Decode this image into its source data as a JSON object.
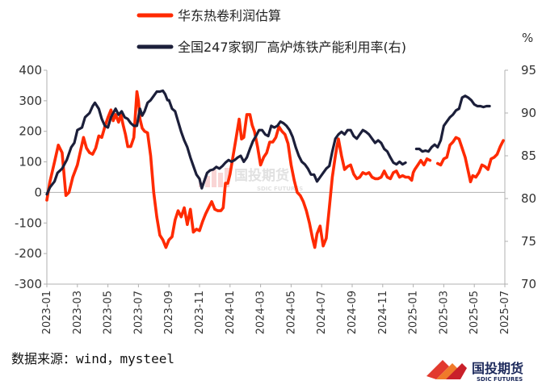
{
  "chart_data": {
    "type": "line",
    "title": "",
    "left_axis": {
      "ylim": [
        -300,
        400
      ],
      "ticks": [
        -300,
        -200,
        -100,
        0,
        100,
        200,
        300,
        400
      ]
    },
    "right_axis": {
      "unit": "%",
      "ylim": [
        70,
        95
      ],
      "ticks": [
        70,
        75,
        80,
        85,
        90,
        95
      ]
    },
    "x_ticks": [
      "2023-01",
      "2023-03",
      "2023-05",
      "2023-07",
      "2023-09",
      "2023-11",
      "2024-01",
      "2024-03",
      "2024-05",
      "2024-07",
      "2024-09",
      "2024-11",
      "2025-01",
      "2025-03",
      "2025-05",
      "2025-07"
    ],
    "x_range": [
      0,
      30
    ],
    "series": [
      {
        "name": "华东热卷利润估算",
        "axis": "left",
        "color": "#ff2a00",
        "points": [
          [
            0,
            -25
          ],
          [
            0.2,
            35
          ],
          [
            0.5,
            100
          ],
          [
            0.75,
            155
          ],
          [
            1.0,
            130
          ],
          [
            1.25,
            -10
          ],
          [
            1.45,
            0
          ],
          [
            1.7,
            50
          ],
          [
            2.0,
            90
          ],
          [
            2.2,
            135
          ],
          [
            2.4,
            180
          ],
          [
            2.6,
            145
          ],
          [
            2.8,
            130
          ],
          [
            3.0,
            125
          ],
          [
            3.2,
            145
          ],
          [
            3.4,
            185
          ],
          [
            3.6,
            180
          ],
          [
            3.8,
            215
          ],
          [
            4.0,
            245
          ],
          [
            4.2,
            270
          ],
          [
            4.35,
            235
          ],
          [
            4.5,
            255
          ],
          [
            4.7,
            230
          ],
          [
            4.85,
            255
          ],
          [
            5.0,
            220
          ],
          [
            5.15,
            190
          ],
          [
            5.3,
            150
          ],
          [
            5.5,
            150
          ],
          [
            5.7,
            180
          ],
          [
            5.9,
            330
          ],
          [
            6.0,
            300
          ],
          [
            6.1,
            240
          ],
          [
            6.25,
            210
          ],
          [
            6.4,
            200
          ],
          [
            6.6,
            195
          ],
          [
            6.8,
            120
          ],
          [
            7.0,
            0
          ],
          [
            7.2,
            -80
          ],
          [
            7.4,
            -140
          ],
          [
            7.6,
            -155
          ],
          [
            7.8,
            -180
          ],
          [
            8.0,
            -155
          ],
          [
            8.2,
            -145
          ],
          [
            8.4,
            -90
          ],
          [
            8.6,
            -60
          ],
          [
            8.8,
            -80
          ],
          [
            9.0,
            -50
          ],
          [
            9.2,
            -105
          ],
          [
            9.4,
            -55
          ],
          [
            9.6,
            -130
          ],
          [
            9.8,
            -120
          ],
          [
            10.0,
            -125
          ],
          [
            10.2,
            -95
          ],
          [
            10.4,
            -70
          ],
          [
            10.6,
            -50
          ],
          [
            10.8,
            -30
          ],
          [
            11.0,
            -55
          ],
          [
            11.2,
            -60
          ],
          [
            11.4,
            -60
          ],
          [
            11.55,
            -50
          ],
          [
            11.7,
            30
          ],
          [
            11.85,
            30
          ],
          [
            12.0,
            60
          ],
          [
            12.2,
            120
          ],
          [
            12.4,
            180
          ],
          [
            12.6,
            240
          ],
          [
            12.75,
            175
          ],
          [
            12.9,
            180
          ],
          [
            13.1,
            255
          ],
          [
            13.3,
            255
          ],
          [
            13.45,
            220
          ],
          [
            13.6,
            200
          ],
          [
            13.8,
            150
          ],
          [
            14.0,
            90
          ],
          [
            14.2,
            115
          ],
          [
            14.4,
            130
          ],
          [
            14.6,
            165
          ],
          [
            14.8,
            165
          ],
          [
            15.0,
            180
          ],
          [
            15.2,
            215
          ],
          [
            15.4,
            200
          ],
          [
            15.6,
            190
          ],
          [
            15.8,
            160
          ],
          [
            16.0,
            90
          ],
          [
            16.2,
            40
          ],
          [
            16.4,
            0
          ],
          [
            16.6,
            -10
          ],
          [
            16.8,
            -30
          ],
          [
            17.0,
            -60
          ],
          [
            17.2,
            -100
          ],
          [
            17.4,
            -150
          ],
          [
            17.55,
            -180
          ],
          [
            17.7,
            -135
          ],
          [
            17.9,
            -110
          ],
          [
            18.1,
            -175
          ],
          [
            18.3,
            -150
          ],
          [
            18.5,
            -50
          ],
          [
            18.7,
            50
          ],
          [
            18.9,
            120
          ],
          [
            19.0,
            150
          ],
          [
            19.1,
            175
          ],
          [
            19.3,
            120
          ],
          [
            19.5,
            75
          ],
          [
            19.7,
            85
          ],
          [
            19.9,
            90
          ],
          [
            20.1,
            60
          ],
          [
            20.3,
            45
          ],
          [
            20.5,
            50
          ],
          [
            20.7,
            65
          ],
          [
            20.9,
            60
          ],
          [
            21.1,
            65
          ],
          [
            21.3,
            50
          ],
          [
            21.5,
            45
          ],
          [
            21.7,
            45
          ],
          [
            21.9,
            50
          ],
          [
            22.1,
            70
          ],
          [
            22.3,
            50
          ],
          [
            22.5,
            45
          ],
          [
            22.7,
            65
          ],
          [
            22.9,
            70
          ],
          [
            23.1,
            50
          ],
          [
            23.3,
            55
          ],
          [
            23.5,
            50
          ],
          [
            23.7,
            50
          ],
          [
            23.9,
            40
          ],
          [
            24.0,
            65
          ],
          [
            24.1,
            75
          ],
          [
            24.3,
            90
          ],
          [
            24.5,
            105
          ],
          [
            24.7,
            90
          ],
          [
            24.9,
            110
          ],
          [
            25.1,
            105
          ]
        ]
      },
      {
        "name": "华东热卷利润估算",
        "axis": "left",
        "color": "#ff2a00",
        "points": [
          [
            25.6,
            95
          ],
          [
            25.8,
            90
          ],
          [
            26.0,
            110
          ],
          [
            26.2,
            115
          ],
          [
            26.4,
            155
          ],
          [
            26.6,
            165
          ],
          [
            26.8,
            180
          ],
          [
            27.0,
            175
          ],
          [
            27.2,
            145
          ],
          [
            27.4,
            115
          ],
          [
            27.6,
            70
          ],
          [
            27.75,
            35
          ],
          [
            27.9,
            55
          ],
          [
            28.1,
            50
          ],
          [
            28.3,
            65
          ],
          [
            28.5,
            90
          ],
          [
            28.7,
            85
          ],
          [
            28.9,
            75
          ],
          [
            29.1,
            110
          ],
          [
            29.3,
            115
          ],
          [
            29.5,
            125
          ],
          [
            29.7,
            150
          ],
          [
            29.9,
            170
          ]
        ]
      },
      {
        "name": "全国247家钢厂高炉炼铁产能利用率(右)",
        "axis": "right",
        "color": "#1c1f3a",
        "points": [
          [
            0,
            80.5
          ],
          [
            0.2,
            81.3
          ],
          [
            0.5,
            82.0
          ],
          [
            0.7,
            83.0
          ],
          [
            1.0,
            83.5
          ],
          [
            1.3,
            84.5
          ],
          [
            1.6,
            86.0
          ],
          [
            1.8,
            86.5
          ],
          [
            2.0,
            88.0
          ],
          [
            2.3,
            88.3
          ],
          [
            2.5,
            89.5
          ],
          [
            2.8,
            90.0
          ],
          [
            3.0,
            90.8
          ],
          [
            3.15,
            91.2
          ],
          [
            3.4,
            90.5
          ],
          [
            3.6,
            89.3
          ],
          [
            3.8,
            88.5
          ],
          [
            4.0,
            88.3
          ],
          [
            4.2,
            89.5
          ],
          [
            4.5,
            90.5
          ],
          [
            4.7,
            89.8
          ],
          [
            4.9,
            90.2
          ],
          [
            5.1,
            89.5
          ],
          [
            5.3,
            89.3
          ],
          [
            5.5,
            88.8
          ],
          [
            5.7,
            88.5
          ],
          [
            5.9,
            88.5
          ],
          [
            6.1,
            90.5
          ],
          [
            6.25,
            89.7
          ],
          [
            6.4,
            90.2
          ],
          [
            6.6,
            91.2
          ],
          [
            6.8,
            91.5
          ],
          [
            7.0,
            92.0
          ],
          [
            7.2,
            92.5
          ],
          [
            7.4,
            92.5
          ],
          [
            7.6,
            92.6
          ],
          [
            7.75,
            92.2
          ],
          [
            7.9,
            91.5
          ],
          [
            8.0,
            91.5
          ],
          [
            8.2,
            90.5
          ],
          [
            8.4,
            90.2
          ],
          [
            8.6,
            89.0
          ],
          [
            8.8,
            87.8
          ],
          [
            9.0,
            86.8
          ],
          [
            9.2,
            86.0
          ],
          [
            9.4,
            84.8
          ],
          [
            9.6,
            83.8
          ],
          [
            9.8,
            82.8
          ],
          [
            10.0,
            82.3
          ],
          [
            10.15,
            81.2
          ],
          [
            10.3,
            82.0
          ],
          [
            10.5,
            83.0
          ],
          [
            10.7,
            83.3
          ],
          [
            10.9,
            83.4
          ],
          [
            11.1,
            83.7
          ],
          [
            11.3,
            83.5
          ],
          [
            11.5,
            83.8
          ],
          [
            11.7,
            84.2
          ],
          [
            11.9,
            84.5
          ],
          [
            12.1,
            84.3
          ],
          [
            12.3,
            84.5
          ],
          [
            12.5,
            84.8
          ],
          [
            12.7,
            85.0
          ],
          [
            12.9,
            84.3
          ],
          [
            13.1,
            84.8
          ],
          [
            13.3,
            85.8
          ],
          [
            13.5,
            86.7
          ],
          [
            13.7,
            87.3
          ],
          [
            13.9,
            88.0
          ],
          [
            14.1,
            88.0
          ],
          [
            14.3,
            87.5
          ],
          [
            14.5,
            87.3
          ],
          [
            14.7,
            88.5
          ],
          [
            14.9,
            88.3
          ],
          [
            15.1,
            88.5
          ],
          [
            15.3,
            89.0
          ],
          [
            15.5,
            88.8
          ],
          [
            15.7,
            88.5
          ],
          [
            15.9,
            88.0
          ],
          [
            16.1,
            87.2
          ],
          [
            16.3,
            86.0
          ],
          [
            16.5,
            85.0
          ],
          [
            16.7,
            84.3
          ],
          [
            16.9,
            84.0
          ],
          [
            17.1,
            83.5
          ],
          [
            17.3,
            82.8
          ],
          [
            17.5,
            82.8
          ],
          [
            17.7,
            82.0
          ],
          [
            17.9,
            82.5
          ],
          [
            18.1,
            83.0
          ],
          [
            18.3,
            83.5
          ],
          [
            18.5,
            83.8
          ],
          [
            18.7,
            85.5
          ],
          [
            18.9,
            87.0
          ],
          [
            19.1,
            87.5
          ],
          [
            19.3,
            87.8
          ],
          [
            19.5,
            87.5
          ],
          [
            19.7,
            88.0
          ],
          [
            19.9,
            88.0
          ],
          [
            20.1,
            87.3
          ],
          [
            20.3,
            87.0
          ],
          [
            20.5,
            87.5
          ],
          [
            20.7,
            88.0
          ],
          [
            20.9,
            87.8
          ],
          [
            21.1,
            87.5
          ],
          [
            21.3,
            87.0
          ],
          [
            21.5,
            86.5
          ],
          [
            21.7,
            86.8
          ],
          [
            21.9,
            86.5
          ],
          [
            22.1,
            85.8
          ],
          [
            22.3,
            85.5
          ],
          [
            22.5,
            84.8
          ],
          [
            22.7,
            84.2
          ],
          [
            22.9,
            84.0
          ],
          [
            23.1,
            84.3
          ],
          [
            23.3,
            84.0
          ],
          [
            23.5,
            84.2
          ]
        ]
      },
      {
        "name": "全国247家钢厂高炉炼铁产能利用率(右)",
        "axis": "right",
        "color": "#1c1f3a",
        "points": [
          [
            24.2,
            85.8
          ],
          [
            24.4,
            85.8
          ],
          [
            24.6,
            85.5
          ],
          [
            24.8,
            85.6
          ],
          [
            25.0,
            85.5
          ],
          [
            25.2,
            86.0
          ],
          [
            25.4,
            86.3
          ],
          [
            25.6,
            86.0
          ],
          [
            25.8,
            86.8
          ],
          [
            26.0,
            88.5
          ],
          [
            26.2,
            89.0
          ],
          [
            26.4,
            89.5
          ],
          [
            26.6,
            89.8
          ],
          [
            26.8,
            90.3
          ],
          [
            27.0,
            90.5
          ],
          [
            27.2,
            91.8
          ],
          [
            27.4,
            92.0
          ],
          [
            27.6,
            91.8
          ],
          [
            27.8,
            91.5
          ],
          [
            28.0,
            91.0
          ],
          [
            28.2,
            90.8
          ],
          [
            28.4,
            90.8
          ],
          [
            28.6,
            90.7
          ],
          [
            28.8,
            90.8
          ],
          [
            29.0,
            90.8
          ]
        ]
      }
    ]
  },
  "legend": [
    {
      "label": "华东热卷利润估算",
      "color": "#ff2a00"
    },
    {
      "label": "全国247家钢厂高炉炼铁产能利用率(右)",
      "color": "#1c1f3a"
    }
  ],
  "source": "数据来源：wind，mysteel",
  "watermark": {
    "cn": "国投期货",
    "en": "SDIC FUTURES"
  },
  "logo": {
    "cn": "国投期货",
    "en": "SDIC FUTURES"
  }
}
